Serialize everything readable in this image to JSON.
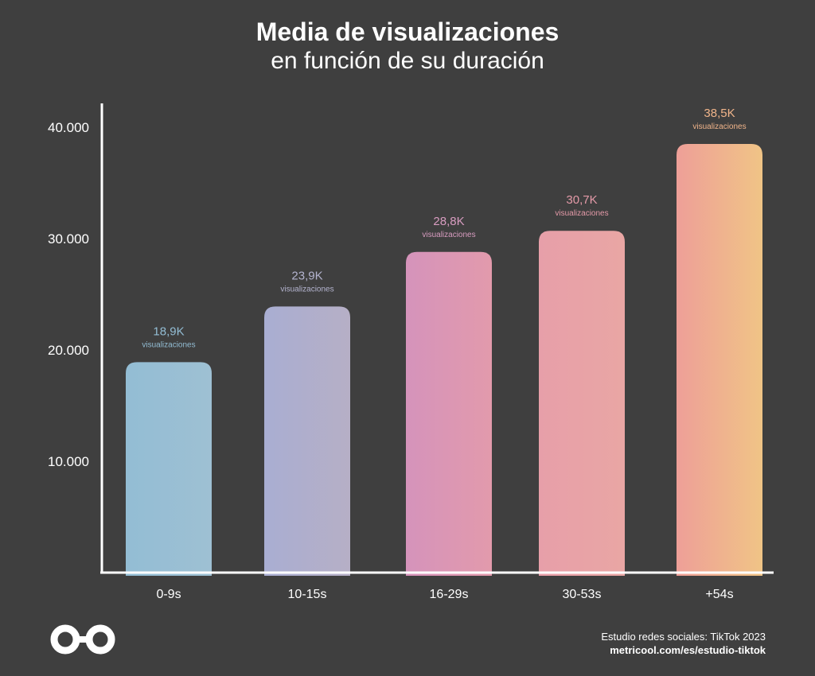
{
  "header": {
    "title": "Media de visualizaciones",
    "subtitle": "en función de su duración"
  },
  "chart_data": {
    "type": "bar",
    "categories": [
      "0-9s",
      "10-15s",
      "16-29s",
      "30-53s",
      "+54s"
    ],
    "values": [
      18900,
      23900,
      28800,
      30700,
      38500
    ],
    "value_labels": [
      "18,9K",
      "23,9K",
      "28,8K",
      "30,7K",
      "38,5K"
    ],
    "value_sublabel": "visualizaciones",
    "yticks": [
      10000,
      20000,
      30000,
      40000
    ],
    "ytick_labels": [
      "10.000",
      "20.000",
      "30.000",
      "40.000"
    ],
    "ylim": [
      0,
      42000
    ],
    "grid": false,
    "colors": [
      {
        "bar": [
          "#93bdd4",
          "#9ec0d3"
        ],
        "label": "#93bdd4"
      },
      {
        "bar": [
          "#a9aed2",
          "#b6afc6"
        ],
        "label": "#b4b4cf"
      },
      {
        "bar": [
          "#d593bb",
          "#e29aac"
        ],
        "label": "#d89cc0"
      },
      {
        "bar": [
          "#e79fa9",
          "#e9a6a4"
        ],
        "label": "#e49aa8"
      },
      {
        "bar": [
          "#ee9f98",
          "#f0c486"
        ],
        "label": "#f0b48a"
      }
    ]
  },
  "footer": {
    "source": "Estudio redes sociales: TikTok 2023",
    "url": "metricool.com/es/estudio-tiktok"
  },
  "logo": {
    "icon": "metricool-infinity-logo",
    "color": "#ffffff"
  }
}
